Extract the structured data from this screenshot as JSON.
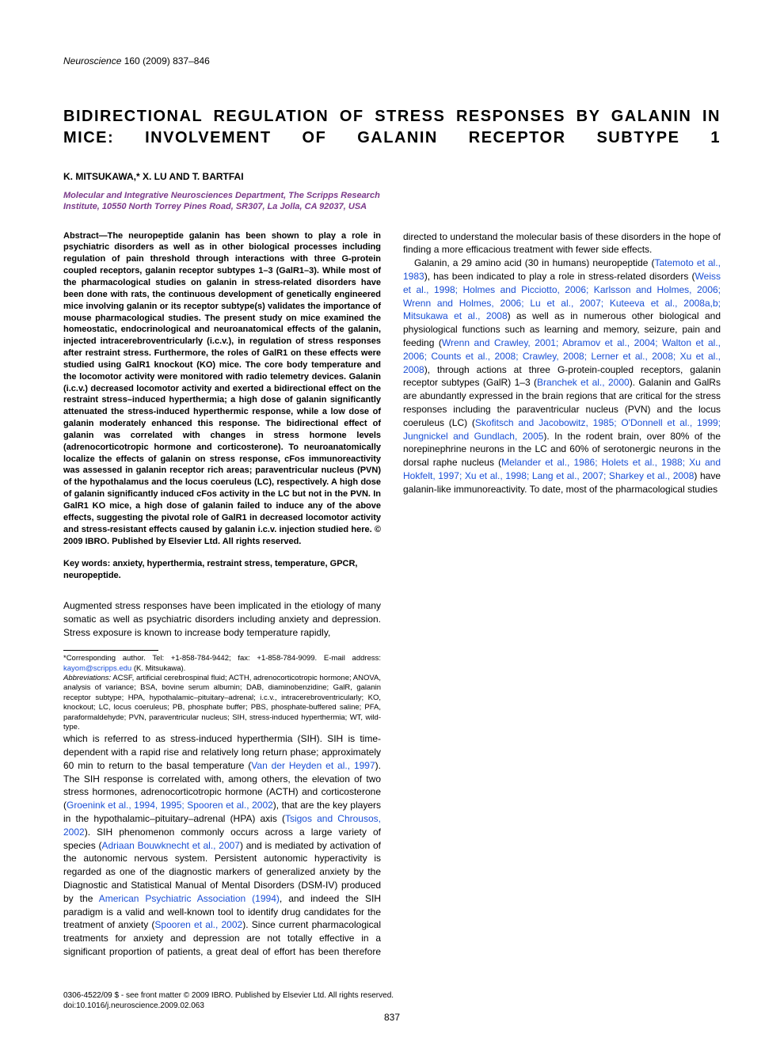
{
  "header": {
    "journal": "Neuroscience",
    "citation": " 160 (2009) 837–846"
  },
  "title": "BIDIRECTIONAL REGULATION OF STRESS RESPONSES BY GALANIN IN MICE: INVOLVEMENT OF GALANIN RECEPTOR SUBTYPE 1",
  "authors": "K. MITSUKAWA,* X. LU AND T. BARTFAI",
  "affiliation": "Molecular and Integrative Neurosciences Department, The Scripps Research Institute, 10550 North Torrey Pines Road, SR307, La Jolla, CA 92037, USA",
  "abstract": "Abstract—The neuropeptide galanin has been shown to play a role in psychiatric disorders as well as in other biological processes including regulation of pain threshold through interactions with three G-protein coupled receptors, galanin receptor subtypes 1–3 (GalR1–3). While most of the pharmacological studies on galanin in stress-related disorders have been done with rats, the continuous development of genetically engineered mice involving galanin or its receptor subtype(s) validates the importance of mouse pharmacological studies. The present study on mice examined the homeostatic, endocrinological and neuroanatomical effects of the galanin, injected intracerebroventricularly (i.c.v.), in regulation of stress responses after restraint stress. Furthermore, the roles of GalR1 on these effects were studied using GalR1 knockout (KO) mice. The core body temperature and the locomotor activity were monitored with radio telemetry devices. Galanin (i.c.v.) decreased locomotor activity and exerted a bidirectional effect on the restraint stress–induced hyperthermia; a high dose of galanin significantly attenuated the stress-induced hyperthermic response, while a low dose of galanin moderately enhanced this response. The bidirectional effect of galanin was correlated with changes in stress hormone levels (adrenocorticotropic hormone and corticosterone). To neuroanatomically localize the effects of galanin on stress response, cFos immunoreactivity was assessed in galanin receptor rich areas; paraventricular nucleus (PVN) of the hypothalamus and the locus coeruleus (LC), respectively. A high dose of galanin significantly induced cFos activity in the LC but not in the PVN. In GalR1 KO mice, a high dose of galanin failed to induce any of the above effects, suggesting the pivotal role of GalR1 in decreased locomotor activity and stress-resistant effects caused by galanin i.c.v. injection studied here. © 2009 IBRO. Published by Elsevier Ltd. All rights reserved.",
  "keywords": "Key words: anxiety, hyperthermia, restraint stress, temperature, GPCR, neuropeptide.",
  "intro_p1_a": "Augmented stress responses have been implicated in the etiology of many somatic as well as psychiatric disorders including anxiety and depression. Stress exposure is known to increase body temperature rapidly, ",
  "intro_p1_b": "which is referred to as stress-induced hyperthermia (SIH). SIH is time-dependent with a rapid rise and relatively long return phase; approximately 60 min to return to the basal temperature (",
  "cite1": "Van der Heyden et al., 1997",
  "intro_p1_c": "). The SIH response is correlated with, among others, the elevation of two stress hormones, adrenocorticotropic hormone (ACTH) and corticosterone (",
  "cite2": "Groenink et al., 1994, 1995; Spooren et al., 2002",
  "intro_p1_d": "), that are the key players in the hypothalamic–pituitary–adrenal (HPA) axis (",
  "cite3": "Tsigos and Chrousos, 2002",
  "intro_p1_e": "). SIH phenomenon commonly occurs across a large variety of species (",
  "cite4": "Adriaan Bouwknecht et al., 2007",
  "intro_p1_f": ") and is mediated by activation of the autonomic nervous system. Persistent autonomic hyperactivity is regarded as one of the diagnostic markers of generalized anxiety by the Diagnostic and Statistical Manual of Mental Disorders (DSM-IV) produced by the ",
  "cite5": "American Psychiatric Association (1994)",
  "intro_p1_g": ", and indeed the SIH paradigm is a valid and well-known tool to identify drug candidates for the treatment of anxiety (",
  "cite6": "Spooren et al., 2002",
  "intro_p1_h": "). Since current pharmacological treatments for anxiety and depression are not totally effective in a significant proportion of patients, a great deal of effort has been therefore directed to understand the molecular basis of these disorders in the hope of finding a more efficacious treatment with fewer side effects.",
  "intro_p2_a": "Galanin, a 29 amino acid (30 in humans) neuropeptide (",
  "cite7": "Tatemoto et al., 1983",
  "intro_p2_b": "), has been indicated to play a role in stress-related disorders (",
  "cite8": "Weiss et al., 1998; Holmes and Picciotto, 2006; Karlsson and Holmes, 2006; Wrenn and Holmes, 2006; Lu et al., 2007; Kuteeva et al., 2008a,b; Mitsukawa et al., 2008",
  "intro_p2_c": ") as well as in numerous other biological and physiological functions such as learning and memory, seizure, pain and feeding (",
  "cite9": "Wrenn and Crawley, 2001; Abramov et al., 2004; Walton et al., 2006; Counts et al., 2008; Crawley, 2008; Lerner et al., 2008; Xu et al., 2008",
  "intro_p2_d": "), through actions at three G-protein-coupled receptors, galanin receptor subtypes (GalR) 1–3 (",
  "cite10": "Branchek et al., 2000",
  "intro_p2_e": "). Galanin and GalRs are abundantly expressed in the brain regions that are critical for the stress responses including the paraventricular nucleus (PVN) and the locus coeruleus (LC) (",
  "cite11": "Skofitsch and Jacobowitz, 1985; O'Donnell et al., 1999; Jungnickel and Gundlach, 2005",
  "intro_p2_f": "). In the rodent brain, over 80% of the norepinephrine neurons in the LC and 60% of serotonergic neurons in the dorsal raphe nucleus (",
  "cite12": "Melander et al., 1986; Holets et al., 1988; Xu and Hokfelt, 1997; Xu et al., 1998; Lang et al., 2007; Sharkey et al., 2008",
  "intro_p2_g": ") have galanin-like immunoreactivity. To date, most of the pharmacological studies",
  "footnote_corr": "*Corresponding author. Tel: +1-858-784-9442; fax: +1-858-784-9099. E-mail address: ",
  "footnote_email": "kayom@scripps.edu",
  "footnote_corr_suffix": " (K. Mitsukawa).",
  "footnote_abbrev_label": "Abbreviations:",
  "footnote_abbrev": " ACSF, artificial cerebrospinal fluid; ACTH, adrenocorticotropic hormone; ANOVA, analysis of variance; BSA, bovine serum albumin; DAB, diaminobenzidine; GalR, galanin receptor subtype; HPA, hypothalamic–pituitary–adrenal; i.c.v., intracerebroventricularly; KO, knockout; LC, locus coeruleus; PB, phosphate buffer; PBS, phosphate-buffered saline; PFA, paraformaldehyde; PVN, paraventricular nucleus; SIH, stress-induced hyperthermia; WT, wild-type.",
  "copyright_line1": "0306-4522/09 $ - see front matter © 2009 IBRO. Published by Elsevier Ltd. All rights reserved.",
  "copyright_line2": "doi:10.1016/j.neuroscience.2009.02.063",
  "page_number": "837"
}
